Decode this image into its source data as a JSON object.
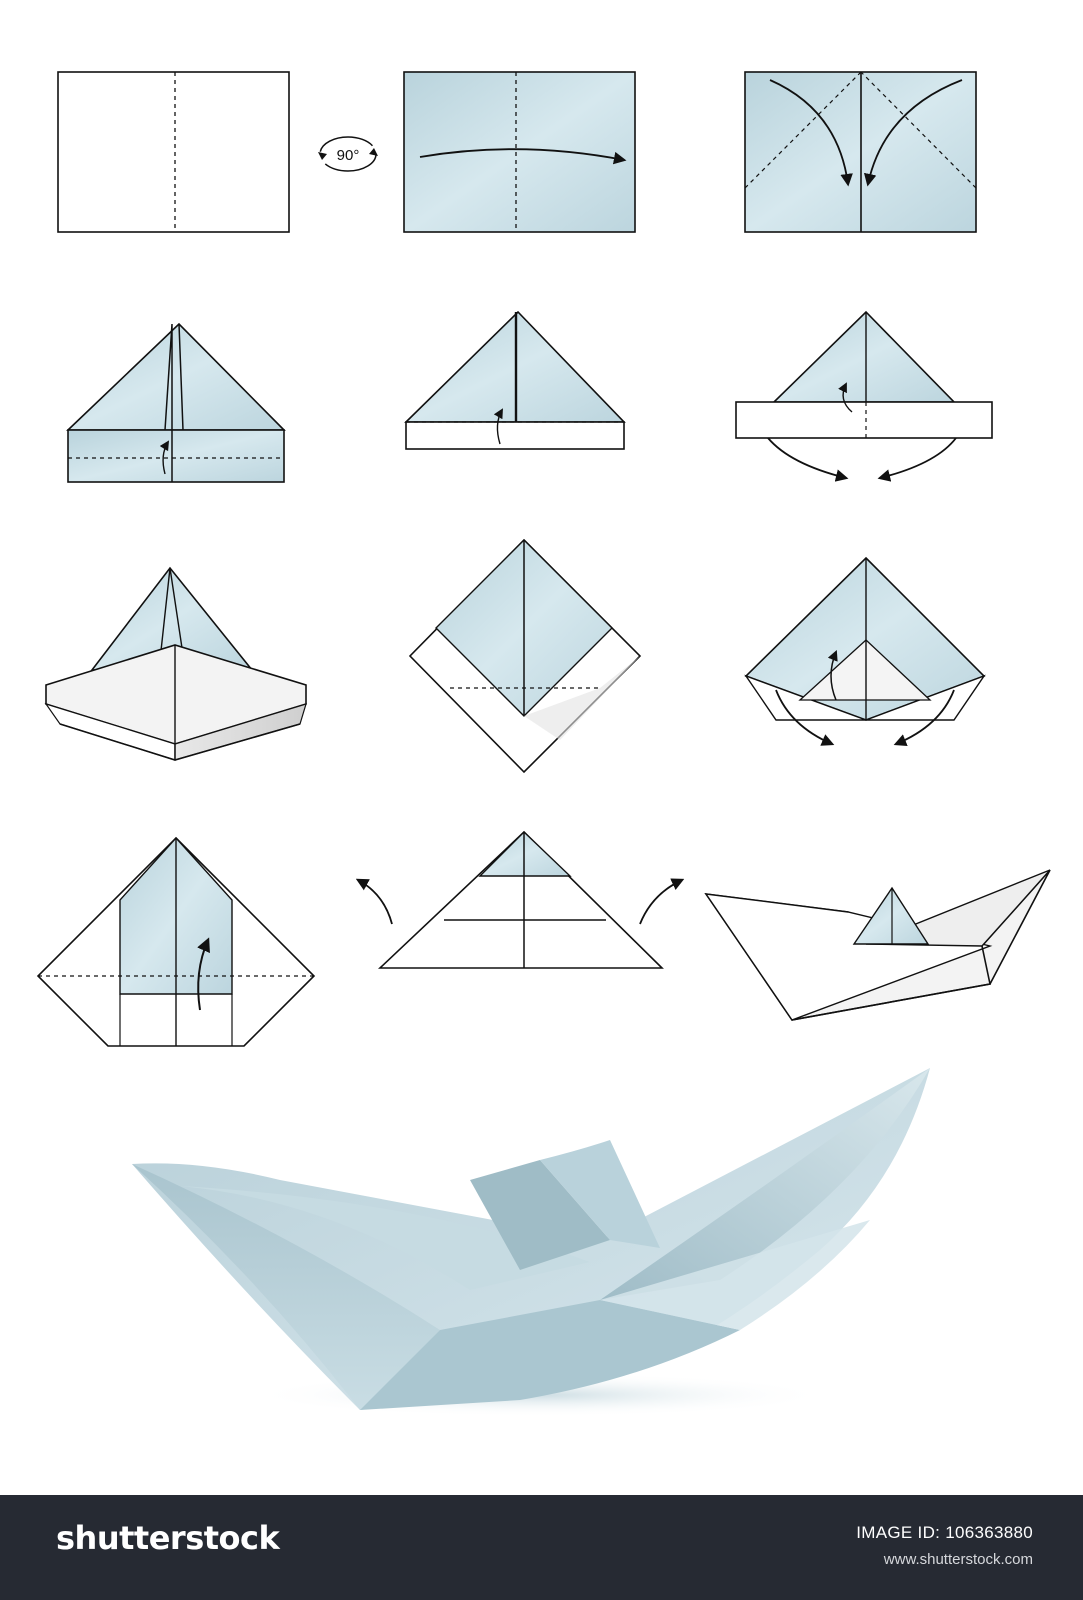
{
  "rotation_label": "90°",
  "colors": {
    "paper_blue": "#c7dde5",
    "paper_white": "#ffffff",
    "stroke": "#111111",
    "footer": "#262a33"
  },
  "footer": {
    "brand": "shutterstock",
    "image_id_text": "IMAGE ID: 106363880",
    "url": "www.shutterstock.com"
  }
}
